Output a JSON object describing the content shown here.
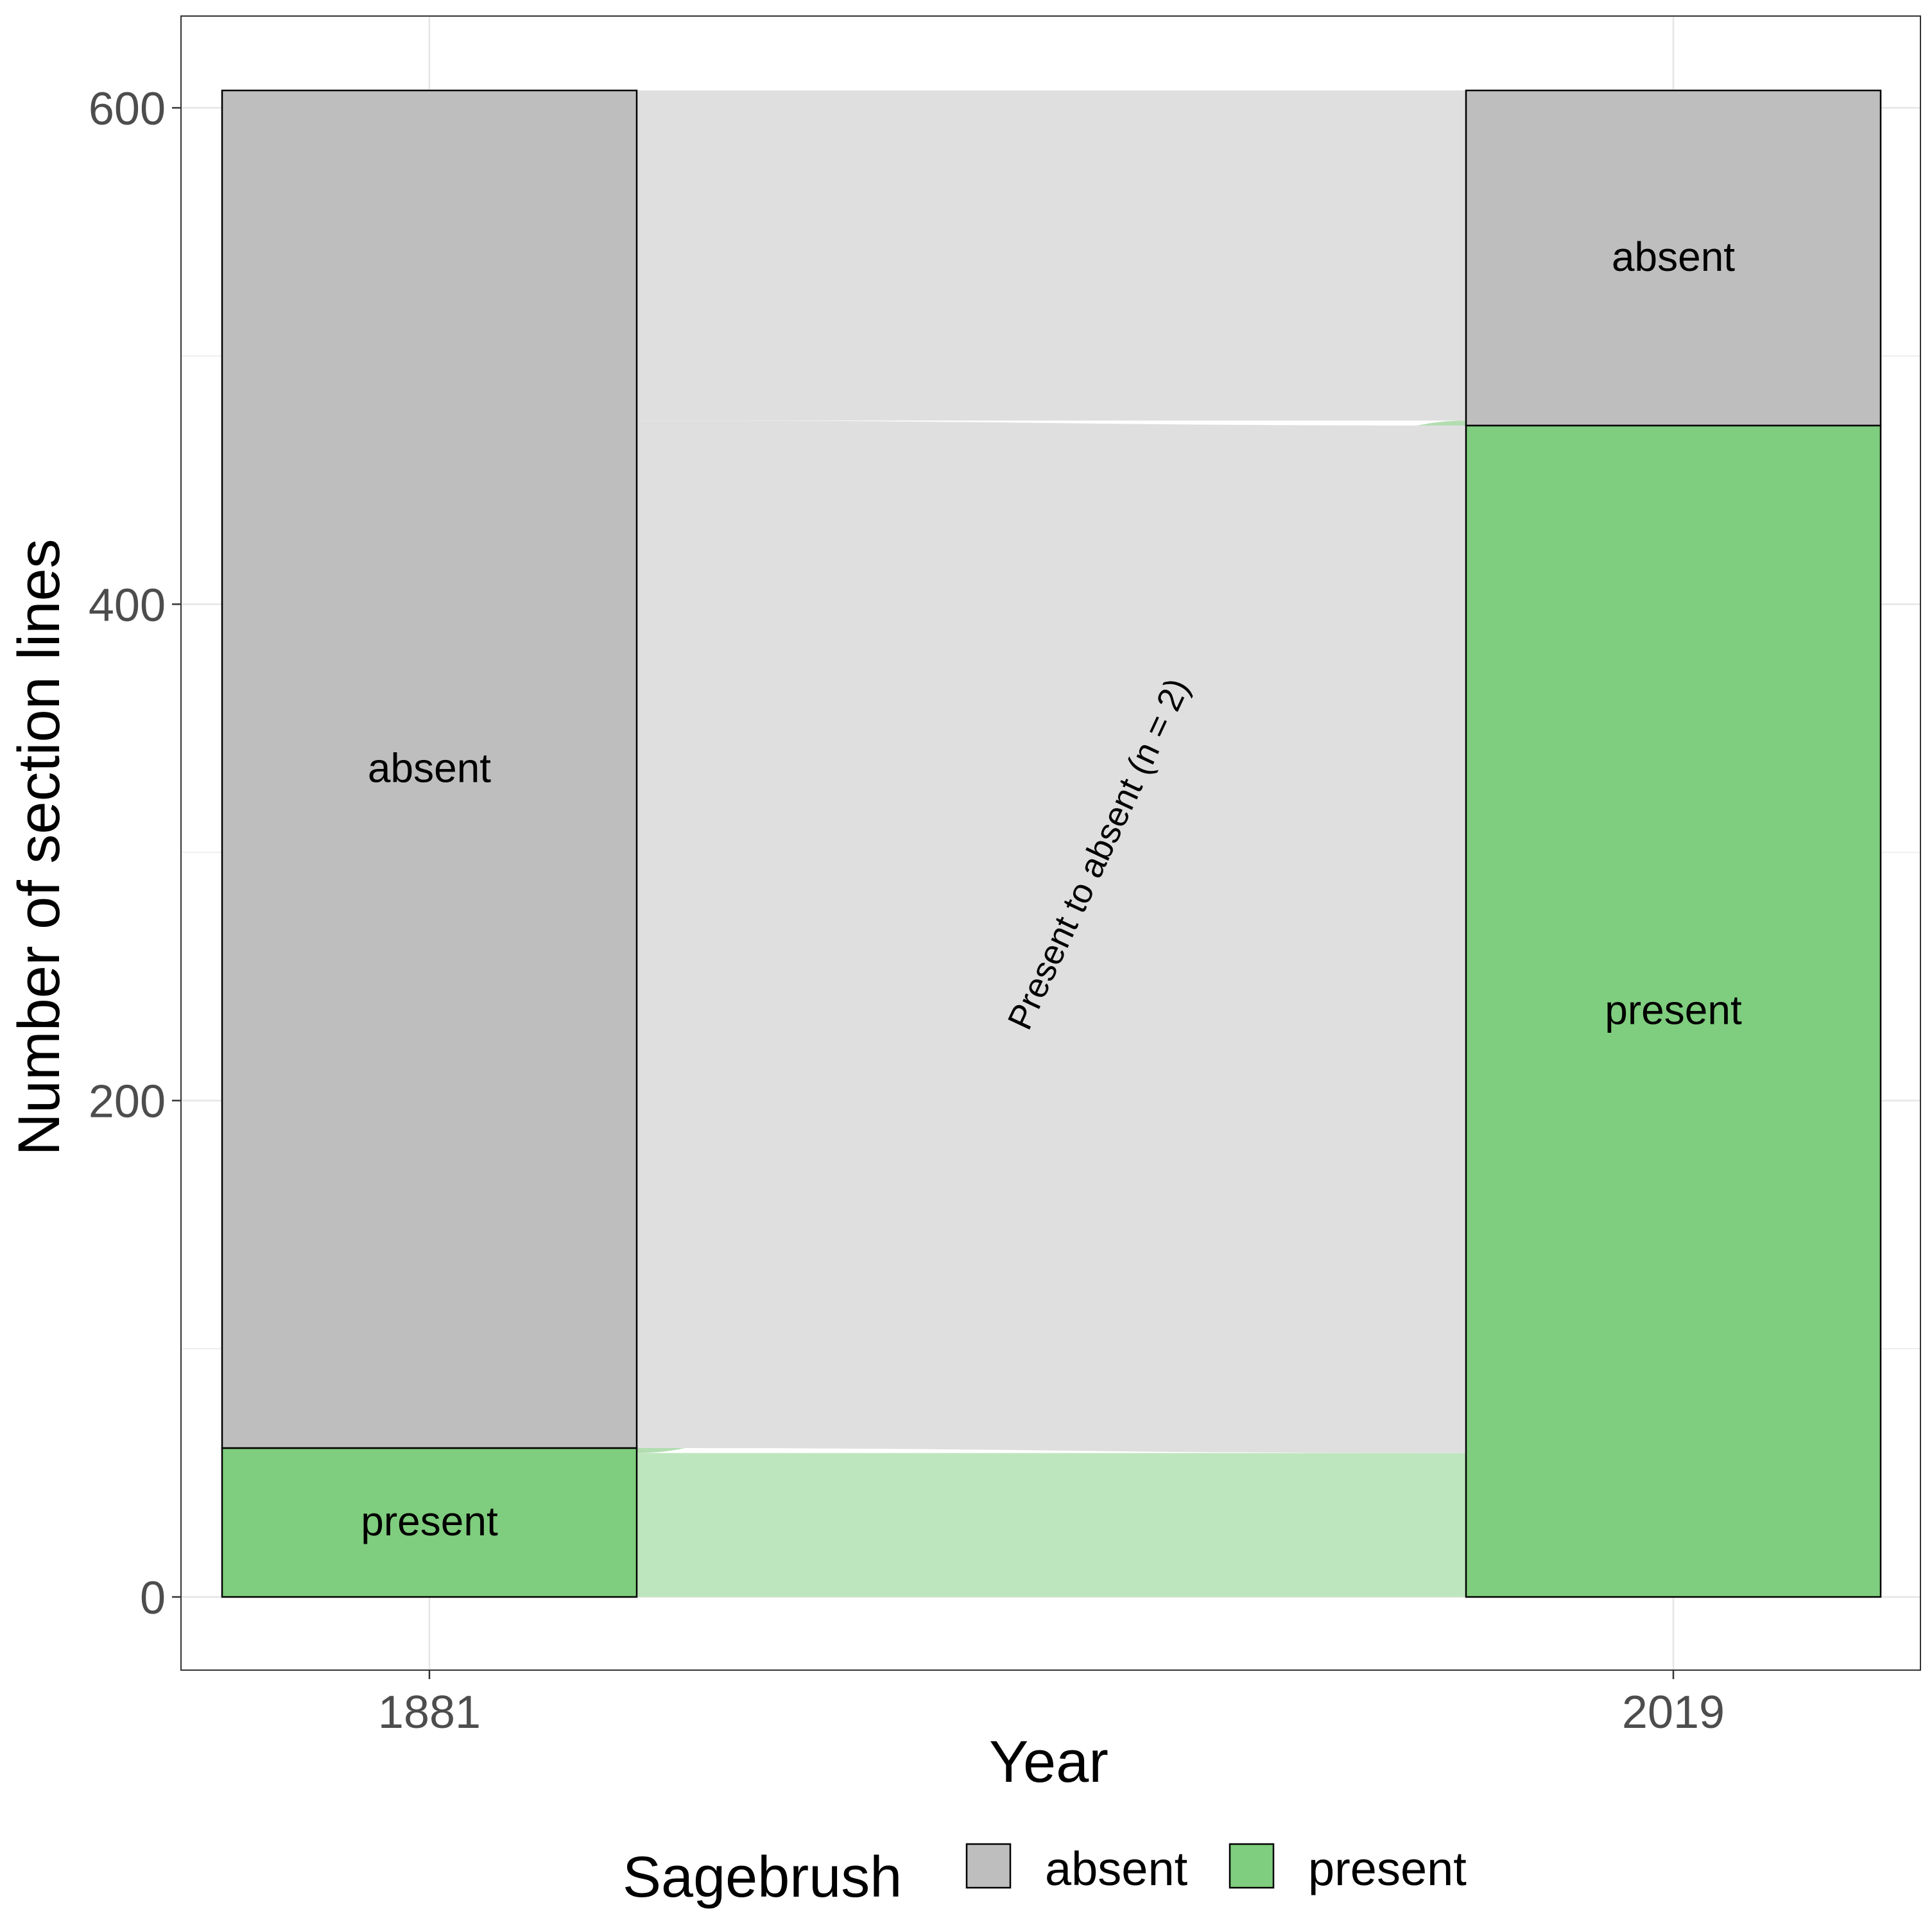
{
  "chart_data": {
    "type": "alluvial",
    "xlabel": "Year",
    "ylabel": "Number of section lines",
    "ylim": [
      -30,
      636
    ],
    "yticks": [
      0,
      200,
      400,
      600
    ],
    "ytick_labels": [
      "0",
      "200",
      "400",
      "600"
    ],
    "categories": [
      "1881",
      "2019"
    ],
    "strata_order": [
      "present",
      "absent"
    ],
    "stacks": [
      {
        "year": "1881",
        "segments": [
          {
            "state": "present",
            "value": 60,
            "label": "present"
          },
          {
            "state": "absent",
            "value": 547,
            "label": "absent"
          }
        ]
      },
      {
        "year": "2019",
        "segments": [
          {
            "state": "present",
            "value": 472,
            "label": "present"
          },
          {
            "state": "absent",
            "value": 135,
            "label": "absent"
          }
        ]
      }
    ],
    "flows": [
      {
        "from": "present",
        "to": "present",
        "value": 58
      },
      {
        "from": "present",
        "to": "absent",
        "value": 2
      },
      {
        "from": "absent",
        "to": "present",
        "value": 414
      },
      {
        "from": "absent",
        "to": "absent",
        "value": 133
      }
    ],
    "annotation": {
      "text": "Present to absent (n = 2)"
    },
    "legend": {
      "title": "Sagebrush",
      "position": "bottom",
      "items": [
        {
          "label": "absent",
          "color": "#BEBEBE"
        },
        {
          "label": "present",
          "color": "#7FCD7E"
        }
      ]
    },
    "colors": {
      "absent": "#BEBEBE",
      "present": "#7FCD7E",
      "flow_absent": "#DFDFDF",
      "flow_present": "#BEE6BE",
      "flow_present_to_absent": "#B2DDB0",
      "grid": "#E6E6E6",
      "panel_border": "#333333"
    },
    "grid": true
  }
}
